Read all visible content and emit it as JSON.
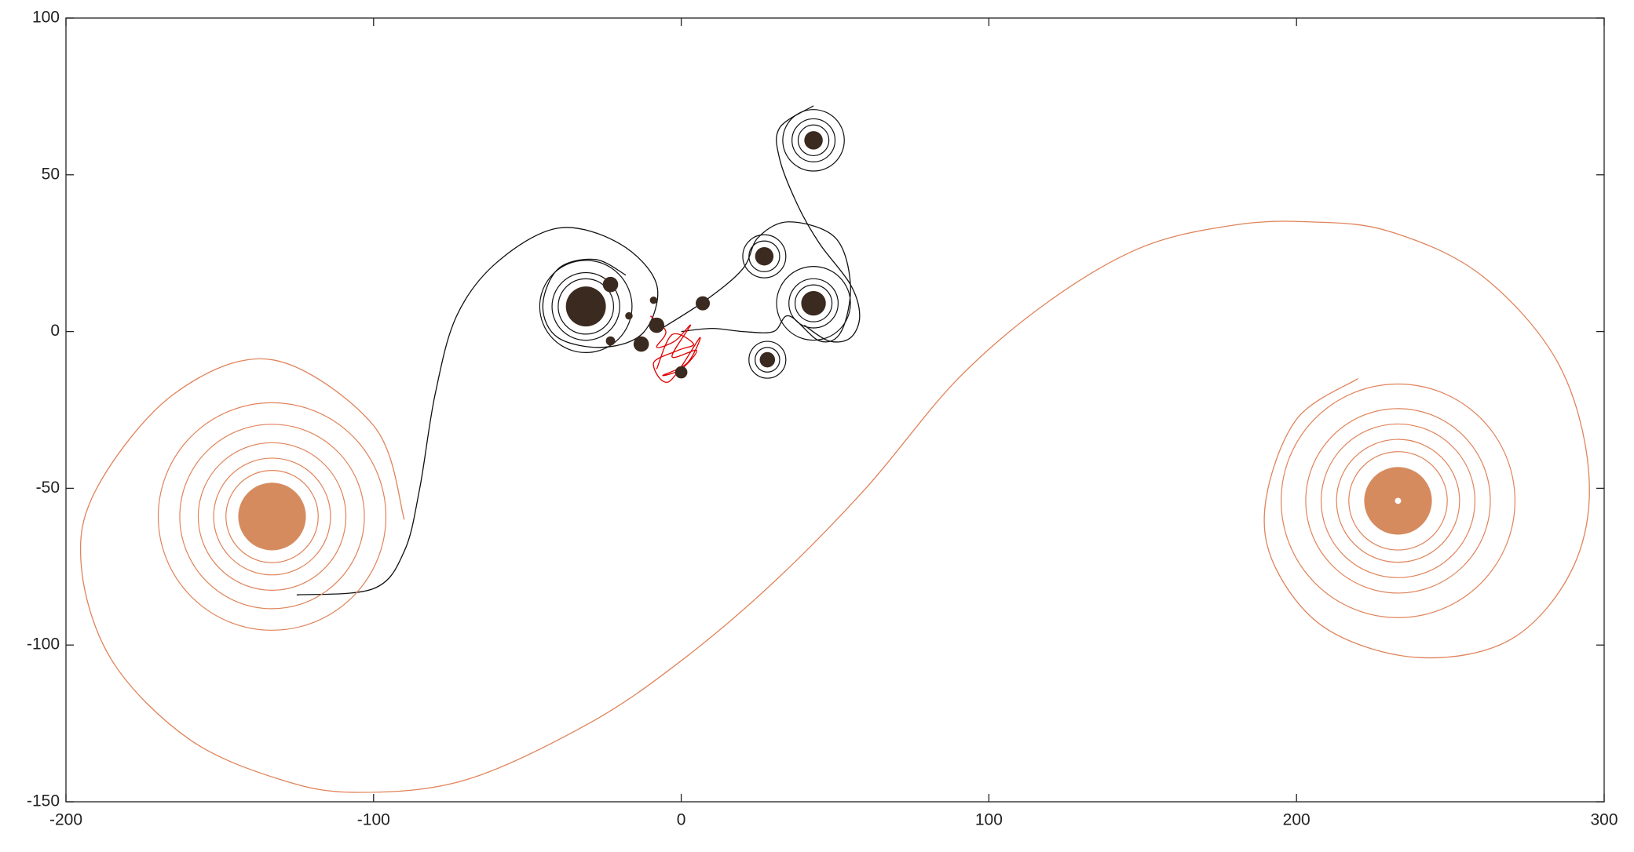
{
  "chart_data": {
    "type": "line",
    "xlim": [
      -200,
      300
    ],
    "ylim": [
      -150,
      100
    ],
    "xticks": [
      -200,
      -100,
      0,
      100,
      200,
      300
    ],
    "yticks": [
      -150,
      -100,
      -50,
      0,
      50,
      100
    ],
    "series": [
      {
        "color": "#e0835a",
        "x": [
          -90,
          -100,
          -133,
          -165,
          -190,
          -195,
          -185,
          -160,
          -130,
          -105,
          -70,
          -30,
          0,
          30,
          60,
          90,
          120,
          150,
          180,
          204,
          230,
          260,
          285,
          295,
          290,
          270,
          240,
          210,
          193,
          190,
          200,
          220
        ],
        "y": [
          -60,
          -30,
          -9,
          -20,
          -50,
          -75,
          -105,
          -130,
          -143,
          -147,
          -143,
          -125,
          -105,
          -80,
          -50,
          -15,
          10,
          27,
          34,
          35,
          32,
          18,
          -10,
          -45,
          -75,
          -98,
          -104,
          -95,
          -75,
          -54,
          -28,
          -15
        ]
      },
      {
        "color": "#111111",
        "x": [
          -125,
          -100,
          -90,
          -85,
          -80,
          -73,
          -60,
          -40,
          -20,
          -8,
          -12,
          -25,
          -40,
          -45,
          -40,
          -28,
          -18
        ],
        "y": [
          -84,
          -82,
          -70,
          -50,
          -20,
          5,
          22,
          33,
          28,
          15,
          0,
          -5,
          -2,
          8,
          20,
          23,
          18
        ]
      },
      {
        "color": "#111111",
        "x": [
          -8,
          8,
          20,
          25,
          35,
          50,
          55,
          52,
          45,
          35,
          30,
          20,
          10,
          0
        ],
        "y": [
          0,
          10,
          20,
          30,
          35,
          30,
          15,
          0,
          -3,
          5,
          0,
          0,
          1,
          0
        ]
      },
      {
        "color": "#111111",
        "x": [
          43,
          32,
          32,
          38,
          45,
          55,
          58,
          55,
          48,
          40
        ],
        "y": [
          72,
          65,
          55,
          40,
          28,
          15,
          5,
          -2,
          -3,
          2
        ]
      },
      {
        "color": "#e00000",
        "x": [
          -10,
          -5,
          -8,
          -2,
          3,
          -3,
          5,
          0,
          -6,
          2,
          6,
          -4,
          -9,
          -1,
          4,
          -3,
          -8
        ],
        "y": [
          5,
          0,
          -5,
          -3,
          2,
          -8,
          -6,
          -12,
          -14,
          -10,
          -2,
          -16,
          -10,
          -6,
          -4,
          -1,
          -12
        ]
      }
    ],
    "rings": [
      {
        "color": "#e0835a",
        "x": [
          -133,
          -133,
          -133,
          -133,
          -133,
          233,
          233,
          233,
          233,
          233
        ],
        "y": [
          -59,
          -59,
          -59,
          -59,
          -59,
          -54,
          -54,
          -54,
          -54,
          -54
        ],
        "r": [
          37,
          30,
          24,
          19,
          15,
          38,
          30,
          25,
          20,
          16
        ]
      },
      {
        "color": "#111111",
        "x": [
          -31,
          -31,
          -31,
          43,
          43,
          43,
          43,
          43,
          43,
          27,
          27,
          28,
          28
        ],
        "y": [
          8,
          8,
          8,
          61,
          61,
          61,
          9,
          9,
          9,
          24,
          24,
          -9,
          -9
        ],
        "r": [
          15,
          11,
          9,
          10,
          7,
          5,
          12,
          8,
          6,
          7,
          5,
          6,
          4
        ]
      }
    ],
    "disks": [
      {
        "color": "#d68b5f",
        "x": [
          -133,
          233
        ],
        "y": [
          -59,
          -54
        ],
        "r": [
          11,
          11
        ]
      },
      {
        "color": "#ffffff",
        "x": [
          233
        ],
        "y": [
          -54
        ],
        "r": [
          1
        ]
      },
      {
        "color": "#3b2a20",
        "x": [
          -31,
          43,
          43,
          27,
          28,
          -23,
          -8,
          -13,
          7,
          0,
          -23,
          -9,
          -17
        ],
        "y": [
          8,
          61,
          9,
          24,
          -9,
          15,
          2,
          -4,
          9,
          -13,
          -3,
          10,
          5
        ],
        "r": [
          6.5,
          3,
          4,
          3,
          2.5,
          2.5,
          2.5,
          2.5,
          2.3,
          2,
          1.5,
          1.2,
          1.2
        ]
      }
    ]
  }
}
